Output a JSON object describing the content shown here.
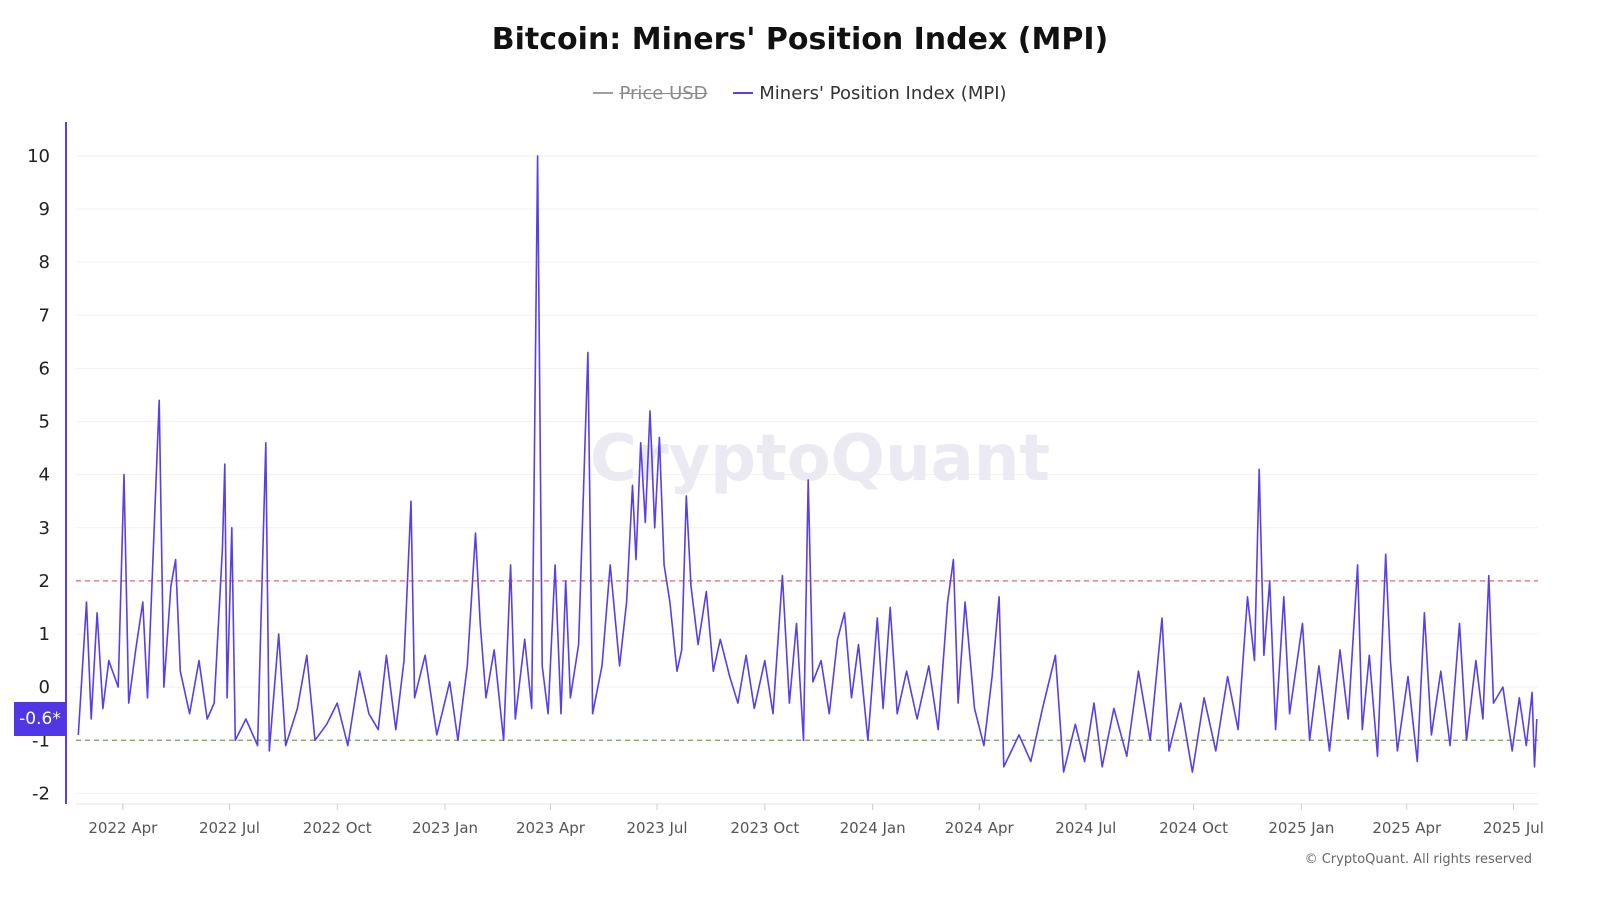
{
  "chart_data": {
    "type": "line",
    "title": "Bitcoin: Miners' Position Index (MPI)",
    "legend": [
      {
        "label": "Price USD",
        "color": "#9e9e9e",
        "hidden": true
      },
      {
        "label": "Miners' Position Index (MPI)",
        "color": "#5a3ee8",
        "hidden": false
      }
    ],
    "x_tick_labels": [
      "2022 Apr",
      "2022 Jul",
      "2022 Oct",
      "2023 Jan",
      "2023 Apr",
      "2023 Jul",
      "2023 Oct",
      "2024 Jan",
      "2024 Apr",
      "2024 Jul",
      "2024 Oct",
      "2025 Jan",
      "2025 Apr",
      "2025 Jul"
    ],
    "y_ticks": [
      "-2",
      "-1",
      "0",
      "1",
      "2",
      "3",
      "4",
      "5",
      "6",
      "7",
      "8",
      "9",
      "10"
    ],
    "ylim": [
      -2.2,
      10.6
    ],
    "xlim": [
      "2022-02-20",
      "2025-07-22"
    ],
    "reference_lines": [
      {
        "y": 2,
        "color": "#e06666",
        "style": "dashed"
      },
      {
        "y": -1,
        "color": "#6aa84f",
        "style": "dashed"
      }
    ],
    "current_value_label": "-0.6*",
    "watermark": "CryptoQuant",
    "series": [
      {
        "name": "Miners' Position Index (MPI)",
        "color": "#5a3ee8",
        "points": [
          [
            "2022-02-22",
            -0.9
          ],
          [
            "2022-03-01",
            1.6
          ],
          [
            "2022-03-05",
            -0.6
          ],
          [
            "2022-03-10",
            1.4
          ],
          [
            "2022-03-15",
            -0.4
          ],
          [
            "2022-03-20",
            0.5
          ],
          [
            "2022-03-28",
            0.0
          ],
          [
            "2022-04-02",
            4.0
          ],
          [
            "2022-04-06",
            -0.3
          ],
          [
            "2022-04-12",
            0.7
          ],
          [
            "2022-04-18",
            1.6
          ],
          [
            "2022-04-22",
            -0.2
          ],
          [
            "2022-05-02",
            5.4
          ],
          [
            "2022-05-06",
            0.0
          ],
          [
            "2022-05-12",
            1.9
          ],
          [
            "2022-05-16",
            2.4
          ],
          [
            "2022-05-20",
            0.3
          ],
          [
            "2022-05-28",
            -0.5
          ],
          [
            "2022-06-05",
            0.5
          ],
          [
            "2022-06-12",
            -0.6
          ],
          [
            "2022-06-18",
            -0.3
          ],
          [
            "2022-06-25",
            2.6
          ],
          [
            "2022-06-27",
            4.2
          ],
          [
            "2022-06-29",
            -0.2
          ],
          [
            "2022-07-03",
            3.0
          ],
          [
            "2022-07-06",
            -1.0
          ],
          [
            "2022-07-15",
            -0.6
          ],
          [
            "2022-07-25",
            -1.1
          ],
          [
            "2022-08-01",
            4.6
          ],
          [
            "2022-08-04",
            -1.2
          ],
          [
            "2022-08-12",
            1.0
          ],
          [
            "2022-08-18",
            -1.1
          ],
          [
            "2022-08-28",
            -0.4
          ],
          [
            "2022-09-05",
            0.6
          ],
          [
            "2022-09-12",
            -1.0
          ],
          [
            "2022-09-22",
            -0.7
          ],
          [
            "2022-10-01",
            -0.3
          ],
          [
            "2022-10-10",
            -1.1
          ],
          [
            "2022-10-20",
            0.3
          ],
          [
            "2022-10-28",
            -0.5
          ],
          [
            "2022-11-05",
            -0.8
          ],
          [
            "2022-11-12",
            0.6
          ],
          [
            "2022-11-20",
            -0.8
          ],
          [
            "2022-11-27",
            0.5
          ],
          [
            "2022-12-03",
            3.5
          ],
          [
            "2022-12-06",
            -0.2
          ],
          [
            "2022-12-15",
            0.6
          ],
          [
            "2022-12-25",
            -0.9
          ],
          [
            "2023-01-05",
            0.1
          ],
          [
            "2023-01-12",
            -1.0
          ],
          [
            "2023-01-20",
            0.4
          ],
          [
            "2023-01-27",
            2.9
          ],
          [
            "2023-01-31",
            1.2
          ],
          [
            "2023-02-05",
            -0.2
          ],
          [
            "2023-02-12",
            0.7
          ],
          [
            "2023-02-20",
            -1.0
          ],
          [
            "2023-02-26",
            2.3
          ],
          [
            "2023-03-02",
            -0.6
          ],
          [
            "2023-03-10",
            0.9
          ],
          [
            "2023-03-16",
            -0.4
          ],
          [
            "2023-03-21",
            10.0
          ],
          [
            "2023-03-25",
            0.4
          ],
          [
            "2023-03-30",
            -0.5
          ],
          [
            "2023-04-05",
            2.3
          ],
          [
            "2023-04-10",
            -0.5
          ],
          [
            "2023-04-14",
            2.0
          ],
          [
            "2023-04-18",
            -0.2
          ],
          [
            "2023-04-25",
            0.8
          ],
          [
            "2023-05-03",
            6.3
          ],
          [
            "2023-05-07",
            -0.5
          ],
          [
            "2023-05-15",
            0.4
          ],
          [
            "2023-05-22",
            2.3
          ],
          [
            "2023-05-30",
            0.4
          ],
          [
            "2023-06-05",
            1.6
          ],
          [
            "2023-06-10",
            3.8
          ],
          [
            "2023-06-13",
            2.4
          ],
          [
            "2023-06-17",
            4.6
          ],
          [
            "2023-06-21",
            3.1
          ],
          [
            "2023-06-25",
            5.2
          ],
          [
            "2023-06-29",
            3.0
          ],
          [
            "2023-07-03",
            4.7
          ],
          [
            "2023-07-07",
            2.3
          ],
          [
            "2023-07-12",
            1.6
          ],
          [
            "2023-07-18",
            0.3
          ],
          [
            "2023-07-22",
            0.7
          ],
          [
            "2023-07-26",
            3.6
          ],
          [
            "2023-07-30",
            1.9
          ],
          [
            "2023-08-05",
            0.8
          ],
          [
            "2023-08-12",
            1.8
          ],
          [
            "2023-08-18",
            0.3
          ],
          [
            "2023-08-24",
            0.9
          ],
          [
            "2023-09-01",
            0.2
          ],
          [
            "2023-09-08",
            -0.3
          ],
          [
            "2023-09-15",
            0.6
          ],
          [
            "2023-09-22",
            -0.4
          ],
          [
            "2023-10-01",
            0.5
          ],
          [
            "2023-10-08",
            -0.5
          ],
          [
            "2023-10-16",
            2.1
          ],
          [
            "2023-10-22",
            -0.3
          ],
          [
            "2023-10-28",
            1.2
          ],
          [
            "2023-11-03",
            -1.0
          ],
          [
            "2023-11-07",
            3.9
          ],
          [
            "2023-11-11",
            0.1
          ],
          [
            "2023-11-18",
            0.5
          ],
          [
            "2023-11-25",
            -0.5
          ],
          [
            "2023-12-02",
            0.9
          ],
          [
            "2023-12-08",
            1.4
          ],
          [
            "2023-12-14",
            -0.2
          ],
          [
            "2023-12-20",
            0.8
          ],
          [
            "2023-12-28",
            -1.0
          ],
          [
            "2024-01-05",
            1.3
          ],
          [
            "2024-01-10",
            -0.4
          ],
          [
            "2024-01-16",
            1.5
          ],
          [
            "2024-01-22",
            -0.5
          ],
          [
            "2024-01-30",
            0.3
          ],
          [
            "2024-02-08",
            -0.6
          ],
          [
            "2024-02-18",
            0.4
          ],
          [
            "2024-02-26",
            -0.8
          ],
          [
            "2024-03-05",
            1.6
          ],
          [
            "2024-03-10",
            2.4
          ],
          [
            "2024-03-14",
            -0.3
          ],
          [
            "2024-03-20",
            1.6
          ],
          [
            "2024-03-28",
            -0.4
          ],
          [
            "2024-04-05",
            -1.1
          ],
          [
            "2024-04-12",
            0.2
          ],
          [
            "2024-04-18",
            1.7
          ],
          [
            "2024-04-22",
            -1.5
          ],
          [
            "2024-05-05",
            -0.9
          ],
          [
            "2024-05-15",
            -1.4
          ],
          [
            "2024-05-25",
            -0.4
          ],
          [
            "2024-06-05",
            0.6
          ],
          [
            "2024-06-12",
            -1.6
          ],
          [
            "2024-06-22",
            -0.7
          ],
          [
            "2024-06-30",
            -1.4
          ],
          [
            "2024-07-08",
            -0.3
          ],
          [
            "2024-07-15",
            -1.5
          ],
          [
            "2024-07-25",
            -0.4
          ],
          [
            "2024-08-05",
            -1.3
          ],
          [
            "2024-08-15",
            0.3
          ],
          [
            "2024-08-25",
            -1.0
          ],
          [
            "2024-09-04",
            1.3
          ],
          [
            "2024-09-10",
            -1.2
          ],
          [
            "2024-09-20",
            -0.3
          ],
          [
            "2024-09-30",
            -1.6
          ],
          [
            "2024-10-10",
            -0.2
          ],
          [
            "2024-10-20",
            -1.2
          ],
          [
            "2024-10-30",
            0.2
          ],
          [
            "2024-11-08",
            -0.8
          ],
          [
            "2024-11-16",
            1.7
          ],
          [
            "2024-11-22",
            0.5
          ],
          [
            "2024-11-26",
            4.1
          ],
          [
            "2024-11-30",
            0.6
          ],
          [
            "2024-12-05",
            2.0
          ],
          [
            "2024-12-10",
            -0.8
          ],
          [
            "2024-12-17",
            1.7
          ],
          [
            "2024-12-22",
            -0.5
          ],
          [
            "2025-01-02",
            1.2
          ],
          [
            "2025-01-08",
            -1.0
          ],
          [
            "2025-01-16",
            0.4
          ],
          [
            "2025-01-25",
            -1.2
          ],
          [
            "2025-02-03",
            0.7
          ],
          [
            "2025-02-10",
            -0.6
          ],
          [
            "2025-02-18",
            2.3
          ],
          [
            "2025-02-22",
            -0.8
          ],
          [
            "2025-02-28",
            0.6
          ],
          [
            "2025-03-07",
            -1.3
          ],
          [
            "2025-03-14",
            2.5
          ],
          [
            "2025-03-18",
            0.5
          ],
          [
            "2025-03-24",
            -1.2
          ],
          [
            "2025-04-02",
            0.2
          ],
          [
            "2025-04-10",
            -1.4
          ],
          [
            "2025-04-16",
            1.4
          ],
          [
            "2025-04-22",
            -0.9
          ],
          [
            "2025-04-30",
            0.3
          ],
          [
            "2025-05-08",
            -1.1
          ],
          [
            "2025-05-16",
            1.2
          ],
          [
            "2025-05-22",
            -1.0
          ],
          [
            "2025-05-30",
            0.5
          ],
          [
            "2025-06-05",
            -0.6
          ],
          [
            "2025-06-10",
            2.1
          ],
          [
            "2025-06-14",
            -0.3
          ],
          [
            "2025-06-22",
            0.0
          ],
          [
            "2025-06-30",
            -1.2
          ],
          [
            "2025-07-06",
            -0.2
          ],
          [
            "2025-07-12",
            -1.1
          ],
          [
            "2025-07-17",
            -0.1
          ],
          [
            "2025-07-19",
            -1.5
          ],
          [
            "2025-07-21",
            -0.6
          ]
        ]
      }
    ]
  },
  "footer": {
    "copyright": "© CryptoQuant. All rights reserved"
  }
}
